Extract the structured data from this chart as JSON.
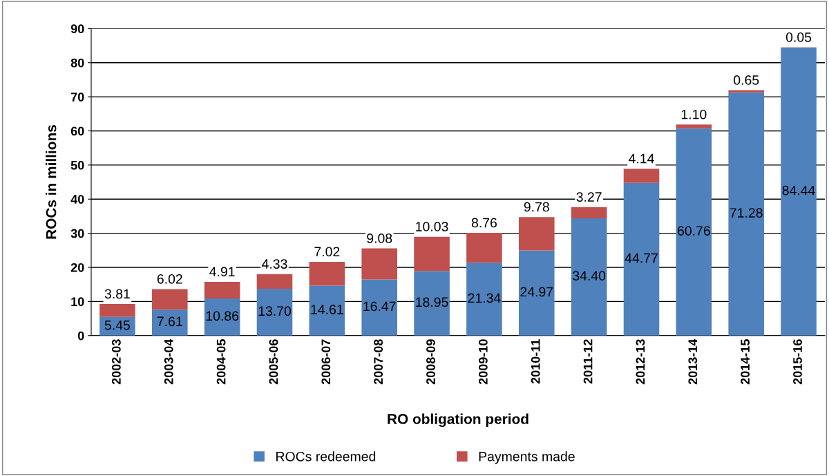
{
  "chart_data": {
    "type": "bar",
    "stacked": true,
    "xlabel": "RO obligation period",
    "ylabel": "ROCs in millions",
    "categories": [
      "2002-03",
      "2003-04",
      "2004-05",
      "2005-06",
      "2006-07",
      "2007-08",
      "2008-09",
      "2009-10",
      "2010-11",
      "2011-12",
      "2012-13",
      "2013-14",
      "2014-15",
      "2015-16"
    ],
    "series": [
      {
        "name": "ROCs redeemed",
        "color": "#4f81bd",
        "values": [
          5.45,
          7.61,
          10.86,
          13.7,
          14.61,
          16.47,
          18.95,
          21.34,
          24.97,
          34.4,
          44.77,
          60.76,
          71.28,
          84.44
        ],
        "value_labels": [
          "5.45",
          "7.61",
          "10.86",
          "13.70",
          "14.61",
          "16.47",
          "18.95",
          "21.34",
          "24.97",
          "34.40",
          "44.77",
          "60.76",
          "71.28",
          "84.44"
        ]
      },
      {
        "name": "Payments made",
        "color": "#c0504d",
        "values": [
          3.81,
          6.02,
          4.91,
          4.33,
          7.02,
          9.08,
          10.03,
          8.76,
          9.78,
          3.27,
          4.14,
          1.1,
          0.65,
          0.05
        ],
        "value_labels": [
          "3.81",
          "6.02",
          "4.91",
          "4.33",
          "7.02",
          "9.08",
          "10.03",
          "8.76",
          "9.78",
          "3.27",
          "4.14",
          "1.10",
          "0.65",
          "0.05"
        ]
      }
    ],
    "ylim": [
      0,
      90
    ],
    "yticks": [
      0,
      10,
      20,
      30,
      40,
      50,
      60,
      70,
      80,
      90
    ],
    "grid": "y",
    "legend": "bottom"
  }
}
